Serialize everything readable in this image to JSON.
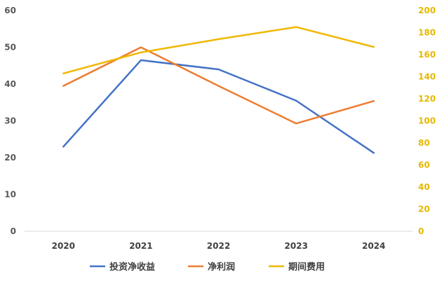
{
  "chart_data": {
    "type": "line",
    "categories": [
      "2020",
      "2021",
      "2022",
      "2023",
      "2024"
    ],
    "y_left": {
      "ticks": [
        "0",
        "10",
        "20",
        "30",
        "40",
        "50",
        "60"
      ],
      "range": [
        0,
        60
      ]
    },
    "y_right": {
      "ticks": [
        "0",
        "20",
        "40",
        "60",
        "80",
        "100",
        "120",
        "140",
        "160",
        "180",
        "200"
      ],
      "range": [
        0,
        200
      ]
    },
    "series": [
      {
        "name": "投资净收益",
        "axis": "left",
        "color": "#4472c4",
        "values": [
          23,
          46.5,
          44,
          35.5,
          21.3
        ]
      },
      {
        "name": "净利润",
        "axis": "left",
        "color": "#ed7d31",
        "values": [
          39.5,
          50,
          39.5,
          29.3,
          35.4
        ]
      },
      {
        "name": "期间费用",
        "axis": "right",
        "color": "#f0b800",
        "values": [
          143,
          162,
          174,
          185,
          167
        ]
      }
    ],
    "legend": "bottom",
    "grid": false
  }
}
